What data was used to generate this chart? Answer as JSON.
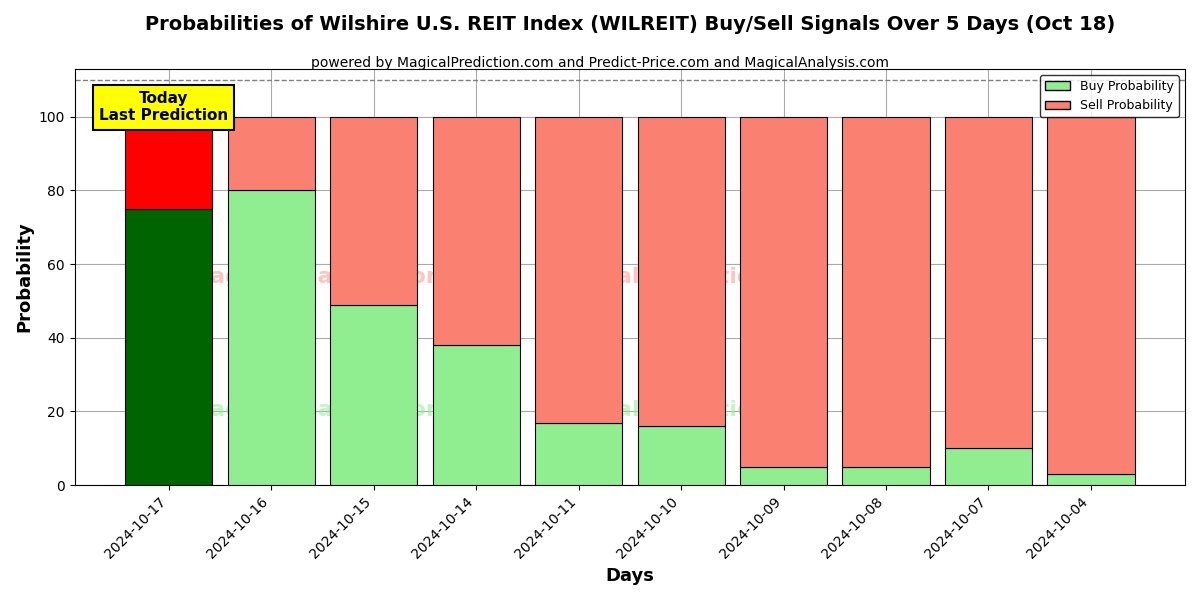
{
  "title": "Probabilities of Wilshire U.S. REIT Index (WILREIT) Buy/Sell Signals Over 5 Days (Oct 18)",
  "subtitle": "powered by MagicalPrediction.com and Predict-Price.com and MagicalAnalysis.com",
  "xlabel": "Days",
  "ylabel": "Probability",
  "dates": [
    "2024-10-17",
    "2024-10-16",
    "2024-10-15",
    "2024-10-14",
    "2024-10-11",
    "2024-10-10",
    "2024-10-09",
    "2024-10-08",
    "2024-10-07",
    "2024-10-04"
  ],
  "buy_values": [
    75,
    80,
    49,
    38,
    17,
    16,
    5,
    5,
    10,
    3
  ],
  "sell_values": [
    25,
    20,
    51,
    62,
    83,
    84,
    95,
    95,
    90,
    97
  ],
  "buy_colors": [
    "#006400",
    "#90EE90",
    "#90EE90",
    "#90EE90",
    "#90EE90",
    "#90EE90",
    "#90EE90",
    "#90EE90",
    "#90EE90",
    "#90EE90"
  ],
  "sell_colors": [
    "#FF0000",
    "#FA8072",
    "#FA8072",
    "#FA8072",
    "#FA8072",
    "#FA8072",
    "#FA8072",
    "#FA8072",
    "#FA8072",
    "#FA8072"
  ],
  "today_box_text": "Today\nLast Prediction",
  "today_box_color": "#FFFF00",
  "legend_buy_label": "Buy Probability",
  "legend_sell_label": "Sell Probability",
  "ylim": [
    0,
    113
  ],
  "dashed_line_y": 110,
  "background_color": "#ffffff",
  "grid_color": "#aaaaaa",
  "bar_edge_color": "#000000",
  "bar_width": 0.85
}
